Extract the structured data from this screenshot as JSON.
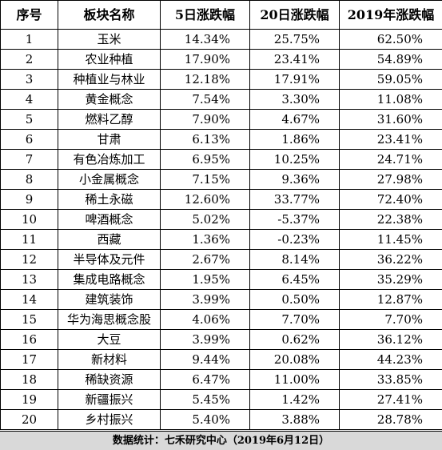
{
  "table": {
    "headers": [
      "序号",
      "板块名称",
      "5日涨跌幅",
      "20日涨跌幅",
      "2019年涨跌幅"
    ],
    "rows": [
      [
        "1",
        "玉米",
        "14.34%",
        "25.75%",
        "62.50%"
      ],
      [
        "2",
        "农业种植",
        "17.90%",
        "23.41%",
        "54.89%"
      ],
      [
        "3",
        "种植业与林业",
        "12.18%",
        "17.91%",
        "59.05%"
      ],
      [
        "4",
        "黄金概念",
        "7.54%",
        "3.30%",
        "11.08%"
      ],
      [
        "5",
        "燃料乙醇",
        "7.90%",
        "4.67%",
        "31.60%"
      ],
      [
        "6",
        "甘肃",
        "6.13%",
        "1.86%",
        "23.41%"
      ],
      [
        "7",
        "有色冶炼加工",
        "6.95%",
        "10.25%",
        "24.71%"
      ],
      [
        "8",
        "小金属概念",
        "7.15%",
        "9.36%",
        "27.98%"
      ],
      [
        "9",
        "稀土永磁",
        "12.60%",
        "33.77%",
        "72.40%"
      ],
      [
        "10",
        "啤酒概念",
        "5.02%",
        "-5.37%",
        "22.38%"
      ],
      [
        "11",
        "西藏",
        "1.36%",
        "-0.23%",
        "11.45%"
      ],
      [
        "12",
        "半导体及元件",
        "2.67%",
        "8.14%",
        "36.22%"
      ],
      [
        "13",
        "集成电路概念",
        "1.95%",
        "6.45%",
        "35.29%"
      ],
      [
        "14",
        "建筑装饰",
        "3.99%",
        "0.50%",
        "12.87%"
      ],
      [
        "15",
        "华为海思概念股",
        "4.06%",
        "7.70%",
        "7.70%"
      ],
      [
        "16",
        "大豆",
        "3.99%",
        "0.62%",
        "36.12%"
      ],
      [
        "17",
        "新材料",
        "9.44%",
        "20.08%",
        "44.23%"
      ],
      [
        "18",
        "稀缺资源",
        "6.47%",
        "11.00%",
        "33.85%"
      ],
      [
        "19",
        "新疆振兴",
        "5.45%",
        "1.42%",
        "27.41%"
      ],
      [
        "20",
        "乡村振兴",
        "5.40%",
        "3.88%",
        "28.78%"
      ]
    ]
  },
  "footer": {
    "text": "数据统计：七禾研究中心（2019年6月12日）"
  },
  "colors": {
    "footer_background": "#d9d9d9",
    "border": "#000000"
  }
}
